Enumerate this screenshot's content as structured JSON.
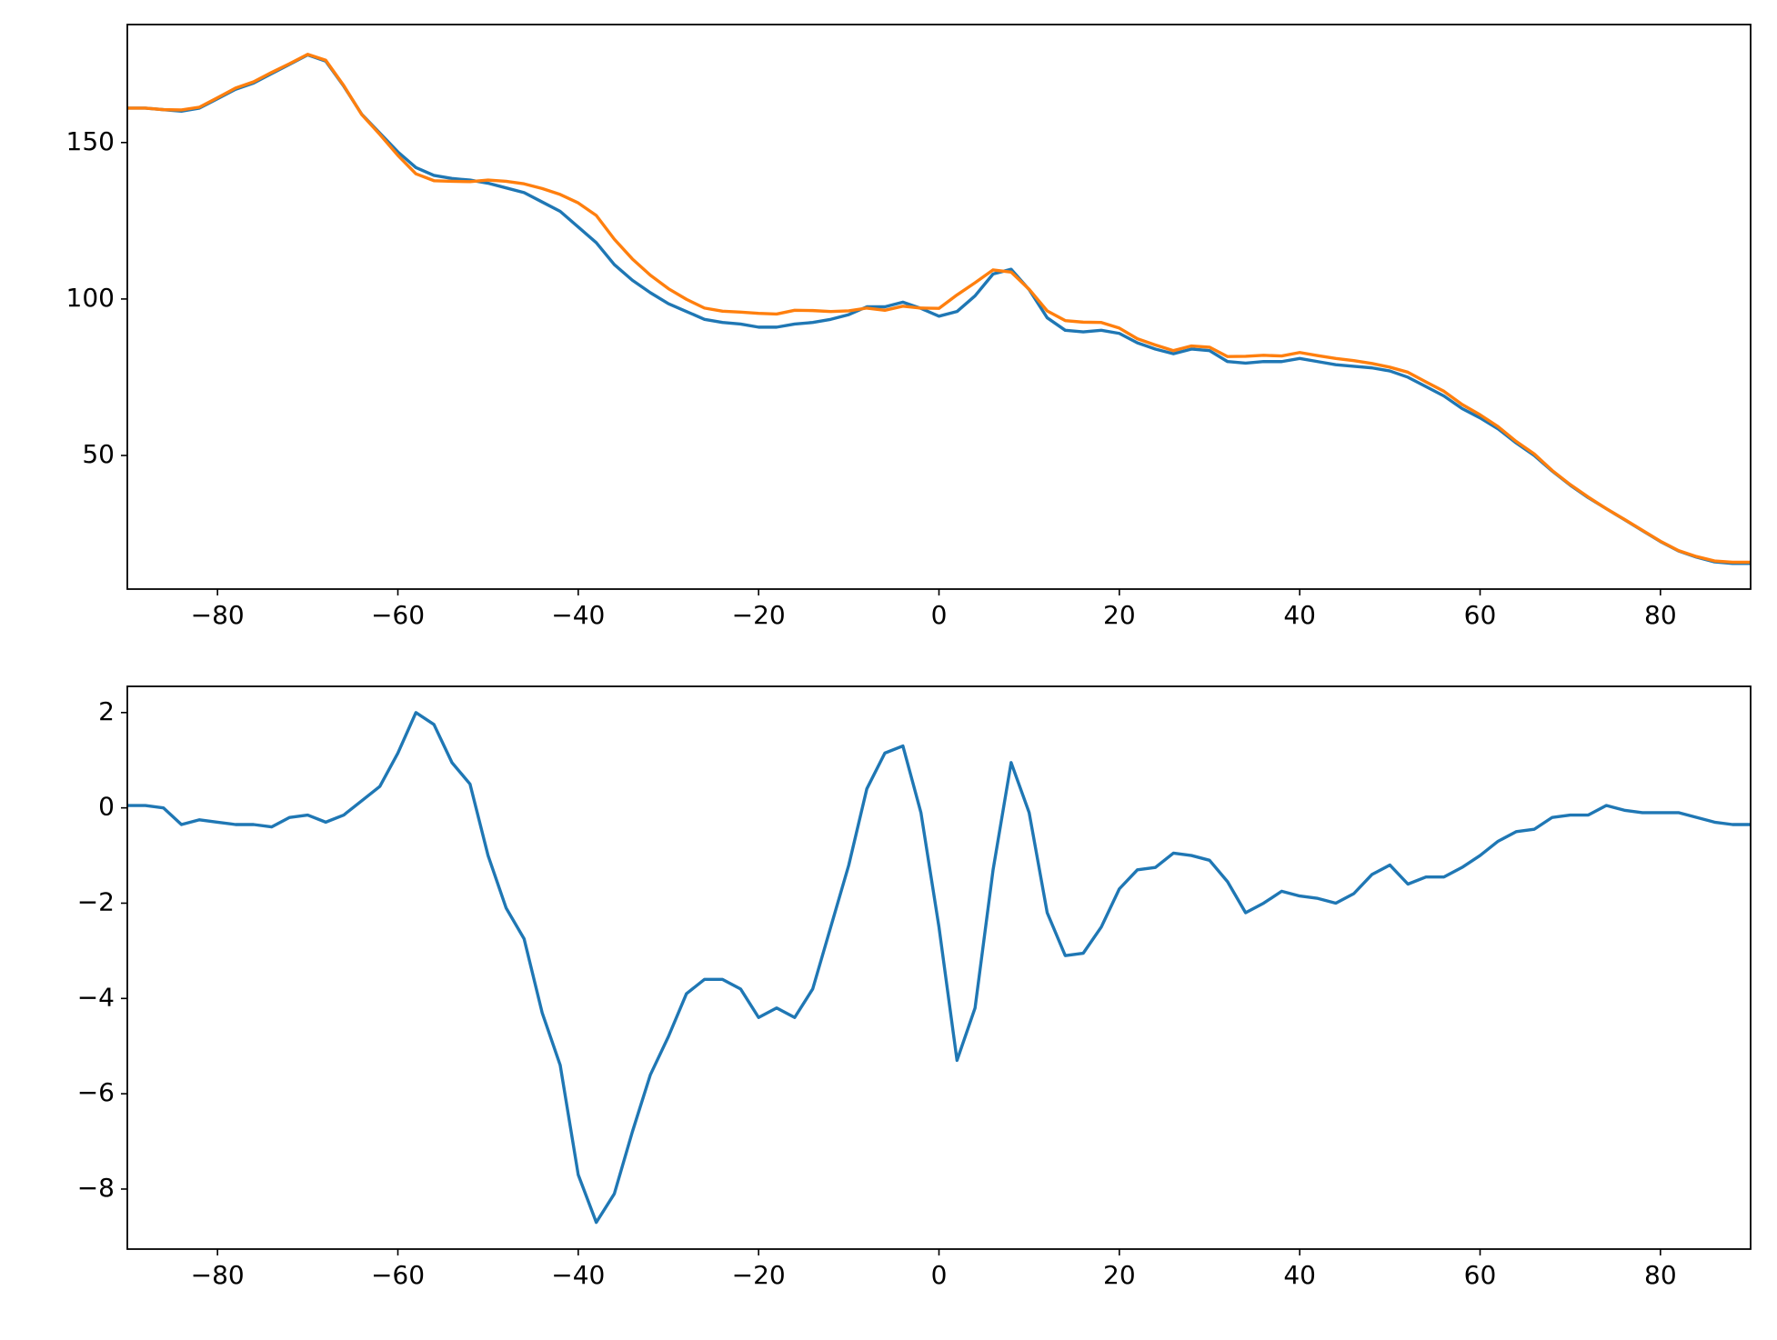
{
  "chart_data": [
    {
      "type": "line",
      "x": [
        -90,
        -88,
        -86,
        -84,
        -82,
        -80,
        -78,
        -76,
        -74,
        -72,
        -70,
        -68,
        -66,
        -64,
        -62,
        -60,
        -58,
        -56,
        -54,
        -52,
        -50,
        -48,
        -46,
        -44,
        -42,
        -40,
        -38,
        -36,
        -34,
        -32,
        -30,
        -28,
        -26,
        -24,
        -22,
        -20,
        -18,
        -16,
        -14,
        -12,
        -10,
        -8,
        -6,
        -4,
        -2,
        0,
        2,
        4,
        6,
        8,
        10,
        12,
        14,
        16,
        18,
        20,
        22,
        24,
        26,
        28,
        30,
        32,
        34,
        36,
        38,
        40,
        42,
        44,
        46,
        48,
        50,
        52,
        54,
        56,
        58,
        60,
        62,
        64,
        66,
        68,
        70,
        72,
        74,
        76,
        78,
        80,
        82,
        84,
        86,
        88,
        90
      ],
      "series": [
        {
          "color": "#1f77b4",
          "values": [
            161,
            161,
            160.5,
            160,
            161,
            164,
            167,
            169,
            172,
            175,
            178,
            176,
            168,
            159,
            153,
            147,
            142,
            139.5,
            138.5,
            138,
            137,
            135.5,
            134,
            131,
            128,
            123,
            118,
            111,
            106,
            102,
            98.5,
            96,
            93.5,
            92.5,
            92,
            91,
            91,
            92,
            92.5,
            93.5,
            95,
            97.5,
            97.5,
            99,
            97,
            94.5,
            96,
            101,
            108,
            109.5,
            103,
            94,
            90,
            89.5,
            90,
            89,
            86,
            84,
            82.5,
            84,
            83.5,
            80,
            79.5,
            80,
            80,
            81,
            80,
            79,
            78.5,
            78,
            77,
            75,
            72,
            69,
            65,
            62,
            58.5,
            54,
            50,
            45,
            40.5,
            36.5,
            33,
            29.5,
            26,
            22.5,
            19.5,
            17.5,
            16,
            15.5,
            15.5
          ]
        },
        {
          "color": "#ff7f0e",
          "values": [
            161,
            161,
            160.5,
            160.4,
            161.3,
            164.3,
            167.4,
            169.4,
            172.4,
            175.2,
            178.2,
            176.3,
            168.2,
            158.9,
            152.6,
            145.9,
            140,
            137.8,
            137.6,
            137.5,
            138,
            137.6,
            136.8,
            135.3,
            133.4,
            130.7,
            126.7,
            119.1,
            112.8,
            107.6,
            103.3,
            99.9,
            97.1,
            96.1,
            95.8,
            95.4,
            95.2,
            96.4,
            96.3,
            96,
            96.2,
            97.1,
            96.4,
            97.7,
            97.1,
            97,
            101.3,
            105.2,
            109.3,
            108.6,
            103.1,
            96.2,
            93.1,
            92.6,
            92.5,
            90.7,
            87.3,
            85.3,
            83.5,
            85,
            84.6,
            81.6,
            81.7,
            82,
            81.8,
            82.9,
            81.9,
            81,
            80.3,
            79.4,
            78.2,
            76.6,
            73.5,
            70.5,
            66.3,
            63,
            59.2,
            54.5,
            50.5,
            45.2,
            40.7,
            36.7,
            33,
            29.6,
            26.1,
            22.6,
            19.6,
            17.7,
            16.3,
            15.9,
            15.9
          ]
        }
      ],
      "xlim": [
        -90,
        90
      ],
      "ylim": [
        7.3,
        187.7
      ],
      "xticks": [
        {
          "value": -80,
          "label": "−80"
        },
        {
          "value": -60,
          "label": "−60"
        },
        {
          "value": -40,
          "label": "−40"
        },
        {
          "value": -20,
          "label": "−20"
        },
        0,
        20,
        40,
        60,
        80
      ],
      "yticks": [
        50,
        100,
        150
      ]
    },
    {
      "type": "line",
      "x": [
        -90,
        -88,
        -86,
        -84,
        -82,
        -80,
        -78,
        -76,
        -74,
        -72,
        -70,
        -68,
        -66,
        -64,
        -62,
        -60,
        -58,
        -56,
        -54,
        -52,
        -50,
        -48,
        -46,
        -44,
        -42,
        -40,
        -38,
        -36,
        -34,
        -32,
        -30,
        -28,
        -26,
        -24,
        -22,
        -20,
        -18,
        -16,
        -14,
        -12,
        -10,
        -8,
        -6,
        -4,
        -2,
        0,
        2,
        4,
        6,
        8,
        10,
        12,
        14,
        16,
        18,
        20,
        22,
        24,
        26,
        28,
        30,
        32,
        34,
        36,
        38,
        40,
        42,
        44,
        46,
        48,
        50,
        52,
        54,
        56,
        58,
        60,
        62,
        64,
        66,
        68,
        70,
        72,
        74,
        76,
        78,
        80,
        82,
        84,
        86,
        88,
        90
      ],
      "series": [
        {
          "color": "#1f77b4",
          "values": [
            0.05,
            0.05,
            0,
            -0.35,
            -0.25,
            -0.3,
            -0.35,
            -0.35,
            -0.4,
            -0.2,
            -0.15,
            -0.3,
            -0.15,
            0.15,
            0.45,
            1.15,
            2.0,
            1.75,
            0.95,
            0.5,
            -1.0,
            -2.1,
            -2.75,
            -4.3,
            -5.4,
            -7.7,
            -8.7,
            -8.1,
            -6.8,
            -5.6,
            -4.8,
            -3.9,
            -3.6,
            -3.6,
            -3.8,
            -4.4,
            -4.2,
            -4.4,
            -3.8,
            -2.5,
            -1.2,
            0.4,
            1.15,
            1.3,
            -0.1,
            -2.5,
            -5.3,
            -4.2,
            -1.3,
            0.95,
            -0.1,
            -2.2,
            -3.1,
            -3.05,
            -2.5,
            -1.7,
            -1.3,
            -1.25,
            -0.95,
            -1.0,
            -1.1,
            -1.55,
            -2.2,
            -2.0,
            -1.75,
            -1.85,
            -1.9,
            -2.0,
            -1.8,
            -1.4,
            -1.2,
            -1.6,
            -1.45,
            -1.45,
            -1.25,
            -1.0,
            -0.7,
            -0.5,
            -0.45,
            -0.2,
            -0.15,
            -0.15,
            0.05,
            -0.05,
            -0.1,
            -0.1,
            -0.1,
            -0.2,
            -0.3,
            -0.35,
            -0.35
          ]
        }
      ],
      "xlim": [
        -90,
        90
      ],
      "ylim": [
        -9.26,
        2.55
      ],
      "xticks": [
        {
          "value": -80,
          "label": "−80"
        },
        {
          "value": -60,
          "label": "−60"
        },
        {
          "value": -40,
          "label": "−40"
        },
        {
          "value": -20,
          "label": "−20"
        },
        0,
        20,
        40,
        60,
        80
      ],
      "yticks": [
        {
          "value": -8,
          "label": "−8"
        },
        {
          "value": -6,
          "label": "−6"
        },
        {
          "value": -4,
          "label": "−4"
        },
        {
          "value": -2,
          "label": "−2"
        },
        0,
        2
      ]
    }
  ]
}
